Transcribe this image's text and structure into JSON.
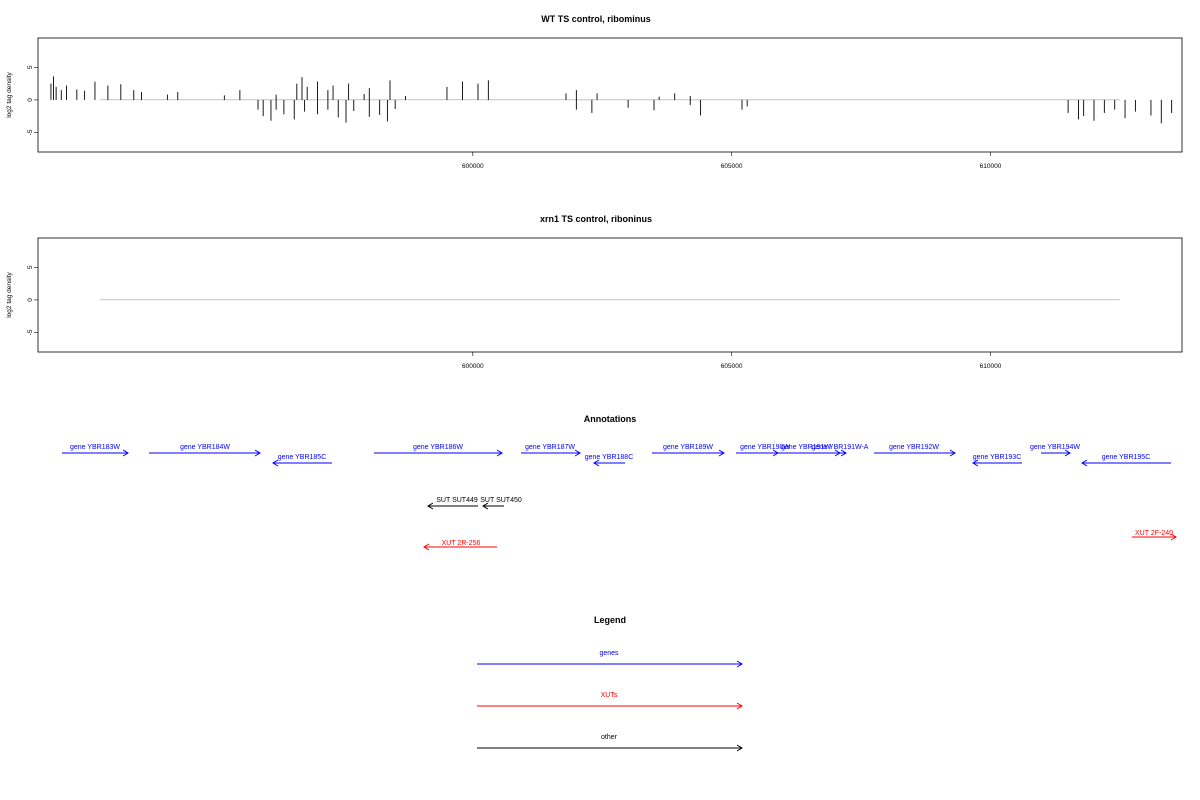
{
  "chart_data": [
    {
      "type": "bar",
      "title": "WT TS control, ribominus",
      "ylabel": "log2 tag density",
      "xlim": [
        591600,
        613700
      ],
      "ylim": [
        -8,
        9.5
      ],
      "yticks": [
        -5,
        0,
        5
      ],
      "xticks": [
        600000,
        605000,
        610000
      ],
      "axis_color": "#888888",
      "series": [
        {
          "values": [
            [
              596600,
              2.5
            ],
            [
              596700,
              3.5
            ],
            [
              596800,
              2
            ],
            [
              597000,
              2.8
            ],
            [
              597200,
              1.5
            ],
            [
              597300,
              2.2
            ],
            [
              597600,
              2.5
            ],
            [
              598000,
              1.8
            ],
            [
              598400,
              3
            ],
            [
              599500,
              2
            ],
            [
              599800,
              2.8
            ],
            [
              600100,
              2.5
            ],
            [
              600300,
              3
            ],
            [
              601800,
              1
            ],
            [
              602000,
              1.5
            ],
            [
              602400,
              1
            ],
            [
              611500,
              -2
            ],
            [
              611700,
              -3
            ],
            [
              611800,
              -2.5
            ],
            [
              612000,
              -3.2
            ],
            [
              612200,
              -2
            ],
            [
              612400,
              -1.5
            ],
            [
              612600,
              -2.8
            ],
            [
              612800,
              -1.8
            ],
            [
              613100,
              -2.4
            ],
            [
              613300,
              -3.6
            ],
            [
              613500,
              -2
            ],
            [
              591850,
              2.5
            ],
            [
              591900,
              3.6
            ],
            [
              591950,
              2
            ],
            [
              592050,
              1.5
            ],
            [
              592150,
              2.2
            ],
            [
              592350,
              1.6
            ],
            [
              592500,
              1.4
            ],
            [
              592700,
              2.8
            ],
            [
              592950,
              2.2
            ],
            [
              593200,
              2.4
            ],
            [
              593450,
              1.5
            ],
            [
              593600,
              1.2
            ],
            [
              595850,
              -1.5
            ],
            [
              595950,
              -2.5
            ],
            [
              596100,
              -3.2
            ],
            [
              596200,
              -1.5
            ],
            [
              596350,
              -2.2
            ],
            [
              596550,
              -3
            ],
            [
              596750,
              -1.8
            ],
            [
              597000,
              -2.2
            ],
            [
              597200,
              -1.5
            ],
            [
              597400,
              -2.7
            ],
            [
              597550,
              -3.5
            ],
            [
              597700,
              -1.7
            ],
            [
              598000,
              -2.6
            ],
            [
              598200,
              -2.3
            ],
            [
              598350,
              -3.3
            ],
            [
              598500,
              -1.4
            ],
            [
              594100,
              0.8
            ],
            [
              594300,
              1.2
            ],
            [
              595200,
              0.7
            ],
            [
              595500,
              1.5
            ],
            [
              596200,
              0.8
            ],
            [
              597900,
              0.9
            ],
            [
              598700,
              0.6
            ],
            [
              602000,
              -1.5
            ],
            [
              602300,
              -2
            ],
            [
              603000,
              -1.2
            ],
            [
              603500,
              -1.6
            ],
            [
              604200,
              -0.8
            ],
            [
              604400,
              -2.4
            ],
            [
              605200,
              -1.5
            ],
            [
              605300,
              -1
            ],
            [
              603600,
              0.5
            ],
            [
              603900,
              1
            ],
            [
              604200,
              0.6
            ]
          ]
        }
      ]
    },
    {
      "type": "bar",
      "title": "xrn1 TS control, riboninus",
      "ylabel": "log2 tag density",
      "xlim": [
        591600,
        613700
      ],
      "ylim": [
        -8,
        9.5
      ],
      "yticks": [
        -5,
        0,
        5
      ],
      "xticks": [
        600000,
        605000,
        610000
      ],
      "series": []
    }
  ],
  "annotations": {
    "title": "Annotations",
    "genes": [
      {
        "label": "gene YBR183W",
        "strand": "+"
      },
      {
        "label": "gene YBR184W",
        "strand": "+"
      },
      {
        "label": "gene YBR185C",
        "strand": "-"
      },
      {
        "label": "gene YBR186W",
        "strand": "+"
      },
      {
        "label": "gene YBR187W",
        "strand": "+"
      },
      {
        "label": "gene YBR188C",
        "strand": "-"
      },
      {
        "label": "gene YBR189W",
        "strand": "+"
      },
      {
        "label": "gene YBR190W",
        "strand": "+"
      },
      {
        "label": "gene YBR191W",
        "strand": "+"
      },
      {
        "label": "gene YBR191W-A",
        "strand": "+"
      },
      {
        "label": "gene YBR192W",
        "strand": "+"
      },
      {
        "label": "gene YBR193C",
        "strand": "-"
      },
      {
        "label": "gene YBR194W",
        "strand": "+"
      },
      {
        "label": "gene YBR195C",
        "strand": "-"
      }
    ],
    "other": [
      {
        "label": "SUT SUT449",
        "strand": "-"
      },
      {
        "label": "SUT SUT450",
        "strand": "-"
      }
    ],
    "xuts": [
      {
        "label": "XUT 2R-256",
        "strand": "-"
      },
      {
        "label": "XUT 2F-240",
        "strand": "+"
      }
    ]
  },
  "legend": {
    "title": "Legend",
    "items": [
      {
        "label": "genes",
        "color": "#0000ff"
      },
      {
        "label": "XUTs",
        "color": "#ff0000"
      },
      {
        "label": "other",
        "color": "#000000"
      }
    ]
  },
  "colors": {
    "gene": "#0000ff",
    "xut": "#ff0000",
    "other": "#000000",
    "trace": "#000000",
    "highlight": "#ff0000"
  }
}
